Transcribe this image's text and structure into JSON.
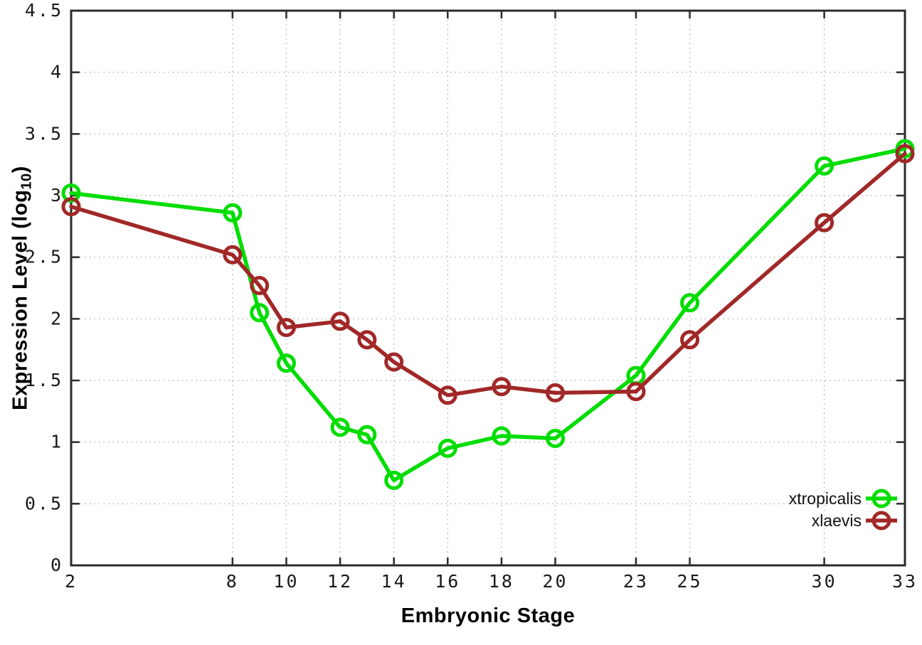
{
  "chart_data": {
    "type": "line",
    "title": "",
    "xlabel": "Embryonic Stage",
    "ylabel": {
      "prefix": "Expression Level (log",
      "subscript": "10",
      "suffix": ")"
    },
    "xlim": [
      2,
      33
    ],
    "ylim": [
      0,
      4.5
    ],
    "x_ticks": [
      2,
      8,
      10,
      12,
      14,
      16,
      18,
      20,
      23,
      25,
      30,
      33
    ],
    "y_ticks": [
      0,
      0.5,
      1,
      1.5,
      2,
      2.5,
      3,
      3.5,
      4,
      4.5
    ],
    "grid": true,
    "legend_position": "bottom-right",
    "series": [
      {
        "name": "xtropicalis",
        "color": "#00dd00",
        "x": [
          2,
          8,
          9,
          10,
          12,
          13,
          14,
          16,
          18,
          20,
          23,
          25,
          30,
          33
        ],
        "y": [
          3.02,
          2.86,
          2.05,
          1.64,
          1.12,
          1.06,
          0.69,
          0.95,
          1.05,
          1.03,
          1.54,
          2.13,
          3.24,
          3.38
        ]
      },
      {
        "name": "xlaevis",
        "color": "#a12828",
        "x": [
          2,
          8,
          9,
          10,
          12,
          13,
          14,
          16,
          18,
          20,
          23,
          25,
          30,
          33
        ],
        "y": [
          2.91,
          2.52,
          2.27,
          1.93,
          1.98,
          1.83,
          1.65,
          1.38,
          1.45,
          1.4,
          1.41,
          1.83,
          2.78,
          3.34
        ]
      }
    ]
  },
  "style": {
    "background": "#ffffff",
    "border_color": "#2b2b2b",
    "grid_color": "#b6b6b6",
    "tick_label_color": "#1a1a1a",
    "legend_text_color": "#111111"
  }
}
